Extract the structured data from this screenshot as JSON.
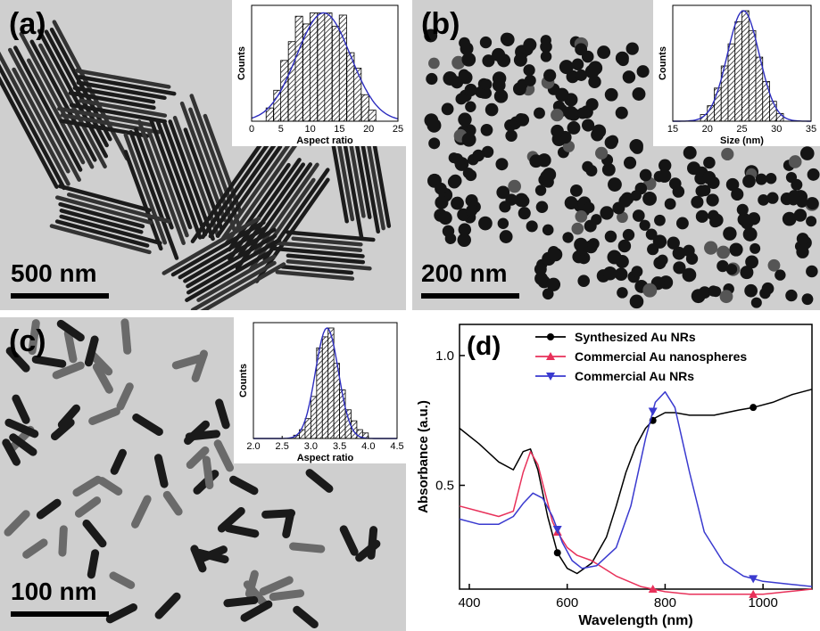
{
  "panels": {
    "a": {
      "label": "(a)",
      "scale_text": "500 nm"
    },
    "b": {
      "label": "(b)",
      "scale_text": "200 nm"
    },
    "c": {
      "label": "(c)",
      "scale_text": "100 nm"
    },
    "d": {
      "label": "(d)"
    }
  },
  "chart_data": [
    {
      "panel": "a-inset",
      "type": "bar",
      "xlabel": "Aspect ratio",
      "ylabel": "Counts",
      "xlim": [
        0,
        25
      ],
      "xticks": [
        0,
        5,
        10,
        15,
        20,
        25
      ],
      "bar_width": 1.25,
      "x": [
        3.1,
        4.4,
        5.6,
        6.9,
        8.1,
        9.4,
        10.6,
        11.9,
        13.1,
        14.4,
        15.6,
        16.9,
        18.1,
        19.4,
        20.6
      ],
      "values": [
        0.12,
        0.28,
        0.55,
        0.72,
        0.95,
        0.88,
        0.98,
        0.98,
        0.98,
        0.86,
        0.96,
        0.62,
        0.48,
        0.24,
        0.1
      ],
      "fit": {
        "type": "gaussian",
        "center": 12.3,
        "sigma": 4.6,
        "peak": 0.98
      }
    },
    {
      "panel": "b-inset",
      "type": "bar",
      "xlabel": "Size (nm)",
      "ylabel": "Counts",
      "xlim": [
        15,
        35
      ],
      "xticks": [
        15,
        20,
        25,
        30,
        35
      ],
      "bar_width": 1.0,
      "x": [
        19.5,
        20.5,
        21.5,
        22.5,
        23.5,
        24.5,
        25.5,
        26.5,
        27.5,
        28.5,
        29.5,
        30.5
      ],
      "values": [
        0.06,
        0.14,
        0.3,
        0.5,
        0.7,
        0.9,
        1.0,
        0.82,
        0.58,
        0.36,
        0.18,
        0.07
      ],
      "fit": {
        "type": "gaussian",
        "center": 25.2,
        "sigma": 2.3,
        "peak": 1.0
      }
    },
    {
      "panel": "c-inset",
      "type": "bar",
      "xlabel": "Aspect ratio",
      "ylabel": "Counts",
      "xlim": [
        2.0,
        4.5
      ],
      "xticks": [
        "2.0",
        "2.5",
        "3.0",
        "3.5",
        "4.0",
        "4.5"
      ],
      "bar_width": 0.1,
      "x": [
        2.75,
        2.85,
        2.95,
        3.05,
        3.15,
        3.25,
        3.35,
        3.45,
        3.55,
        3.65,
        3.75,
        3.85,
        3.95
      ],
      "values": [
        0.03,
        0.08,
        0.18,
        0.38,
        0.82,
        0.92,
        1.0,
        0.68,
        0.44,
        0.26,
        0.16,
        0.08,
        0.05
      ],
      "fit": {
        "type": "gaussian",
        "center": 3.28,
        "sigma": 0.2,
        "peak": 1.0
      }
    },
    {
      "panel": "d",
      "type": "line",
      "xlabel": "Wavelength (nm)",
      "ylabel": "Absorbance (a.u.)",
      "xlim": [
        380,
        1100
      ],
      "ylim": [
        0.1,
        1.12
      ],
      "xticks": [
        400,
        600,
        800,
        1000
      ],
      "yticks": [
        "0.5",
        "1.0"
      ],
      "legend_position": "top",
      "series": [
        {
          "name": "Synthesized Au NRs",
          "color": "#000000",
          "marker": "circle",
          "x": [
            380,
            420,
            460,
            490,
            510,
            525,
            540,
            560,
            580,
            600,
            620,
            650,
            680,
            700,
            720,
            740,
            760,
            780,
            800,
            820,
            850,
            900,
            950,
            980,
            1020,
            1060,
            1100
          ],
          "y": [
            0.72,
            0.66,
            0.59,
            0.56,
            0.63,
            0.64,
            0.56,
            0.38,
            0.24,
            0.18,
            0.16,
            0.2,
            0.3,
            0.42,
            0.55,
            0.65,
            0.72,
            0.76,
            0.78,
            0.78,
            0.77,
            0.77,
            0.79,
            0.8,
            0.82,
            0.85,
            0.87
          ],
          "marker_x": [
            580,
            775,
            980
          ]
        },
        {
          "name": "Commercial Au nanospheres",
          "color": "#e8315a",
          "marker": "triangle-up",
          "x": [
            380,
            420,
            460,
            490,
            510,
            525,
            540,
            555,
            570,
            580,
            600,
            620,
            650,
            700,
            750,
            800,
            850,
            900,
            950,
            1000,
            1050,
            1100
          ],
          "y": [
            0.42,
            0.4,
            0.38,
            0.4,
            0.55,
            0.63,
            0.58,
            0.47,
            0.36,
            0.32,
            0.26,
            0.23,
            0.21,
            0.15,
            0.11,
            0.09,
            0.08,
            0.08,
            0.08,
            0.08,
            0.09,
            0.1
          ],
          "marker_x": [
            580,
            775,
            980
          ]
        },
        {
          "name": "Commercial Au NRs",
          "color": "#3a3acf",
          "marker": "triangle-down",
          "x": [
            380,
            420,
            460,
            490,
            510,
            530,
            550,
            570,
            590,
            610,
            630,
            660,
            700,
            730,
            760,
            780,
            800,
            820,
            850,
            880,
            920,
            960,
            1000,
            1050,
            1100
          ],
          "y": [
            0.37,
            0.35,
            0.35,
            0.38,
            0.43,
            0.47,
            0.45,
            0.38,
            0.28,
            0.21,
            0.18,
            0.19,
            0.26,
            0.42,
            0.68,
            0.82,
            0.86,
            0.8,
            0.55,
            0.32,
            0.2,
            0.15,
            0.13,
            0.12,
            0.11
          ],
          "marker_x": [
            580,
            775,
            980
          ]
        }
      ]
    }
  ]
}
